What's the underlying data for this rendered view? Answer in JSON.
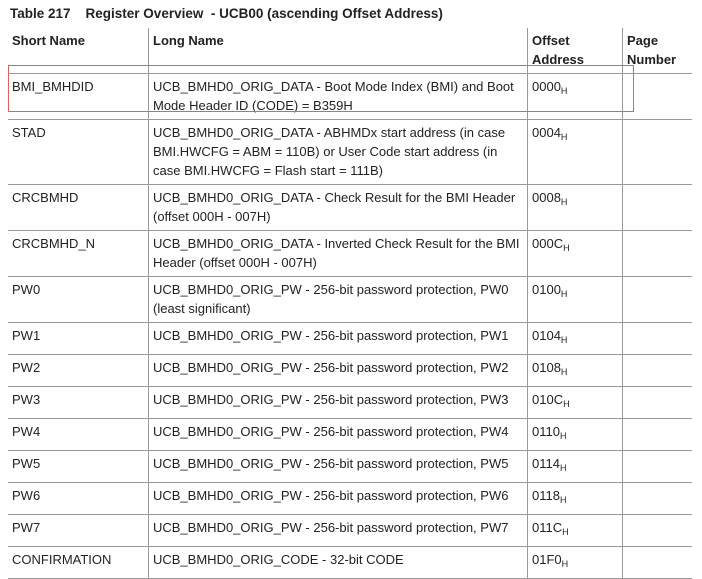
{
  "caption": "Table 217    Register Overview  - UCB00 (ascending Offset Address)",
  "headers": [
    "Short Name",
    "Long Name",
    "Offset Address",
    "Page Number"
  ],
  "highlight_color": "#e06060",
  "rows": [
    {
      "short": "BMI_BMHDID",
      "long": "UCB_BMHD0_ORIG_DATA - Boot Mode Index (BMI) and Boot Mode Header ID (CODE) = B359H",
      "offset": "0000",
      "sub": "H",
      "page": ""
    },
    {
      "short": "STAD",
      "long": "UCB_BMHD0_ORIG_DATA - ABHMDx start address (in case BMI.HWCFG = ABM = 110B) or User Code start address (in case BMI.HWCFG = Flash start = 111B)",
      "offset": "0004",
      "sub": "H",
      "page": ""
    },
    {
      "short": "CRCBMHD",
      "long": "UCB_BMHD0_ORIG_DATA - Check Result for the BMI Header (offset 000H - 007H)",
      "offset": "0008",
      "sub": "H",
      "page": ""
    },
    {
      "short": "CRCBMHD_N",
      "long": "UCB_BMHD0_ORIG_DATA - Inverted Check Result for the BMI Header (offset 000H - 007H)",
      "offset": "000C",
      "sub": "H",
      "page": ""
    },
    {
      "short": "PW0",
      "long": "UCB_BMHD0_ORIG_PW - 256-bit password protection, PW0 (least significant)",
      "offset": "0100",
      "sub": "H",
      "page": ""
    },
    {
      "short": "PW1",
      "long": "UCB_BMHD0_ORIG_PW - 256-bit password protection, PW1",
      "offset": "0104",
      "sub": "H",
      "page": ""
    },
    {
      "short": "PW2",
      "long": "UCB_BMHD0_ORIG_PW - 256-bit password protection, PW2",
      "offset": "0108",
      "sub": "H",
      "page": ""
    },
    {
      "short": "PW3",
      "long": "UCB_BMHD0_ORIG_PW - 256-bit password protection, PW3",
      "offset": "010C",
      "sub": "H",
      "page": ""
    },
    {
      "short": "PW4",
      "long": "UCB_BMHD0_ORIG_PW - 256-bit password protection, PW4",
      "offset": "0110",
      "sub": "H",
      "page": ""
    },
    {
      "short": "PW5",
      "long": "UCB_BMHD0_ORIG_PW - 256-bit password protection, PW5",
      "offset": "0114",
      "sub": "H",
      "page": ""
    },
    {
      "short": "PW6",
      "long": "UCB_BMHD0_ORIG_PW - 256-bit password protection, PW6",
      "offset": "0118",
      "sub": "H",
      "page": ""
    },
    {
      "short": "PW7",
      "long": "UCB_BMHD0_ORIG_PW - 256-bit password protection, PW7",
      "offset": "011C",
      "sub": "H",
      "page": ""
    },
    {
      "short": "CONFIRMATION",
      "long": "UCB_BMHD0_ORIG_CODE - 32-bit CODE",
      "offset": "01F0",
      "sub": "H",
      "page": ""
    }
  ]
}
